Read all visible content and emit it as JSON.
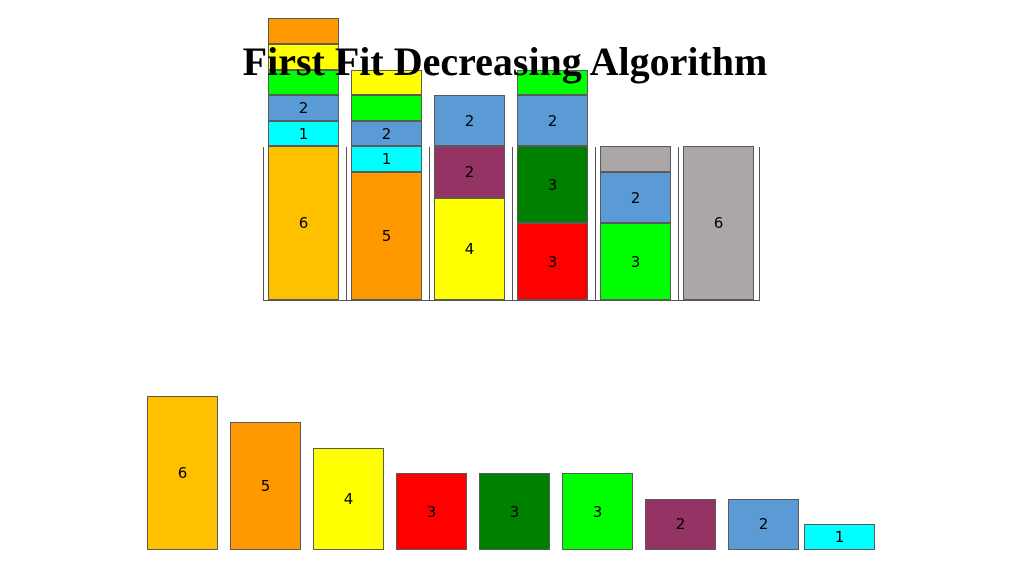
{
  "title": "First Fit Decreasing Algorithm",
  "colors": {
    "6": "#FFC000",
    "5": "#FF9900",
    "4": "#FFFF00",
    "3_red": "#FF0000",
    "3_dark_green": "#008000",
    "3_green": "#00FF00",
    "2_purple": "#953464",
    "2_blue": "#5B9BD5",
    "1": "#00FFFF",
    "gray": "#ABA7A7",
    "orange_top": "#FF9900"
  },
  "items": [
    {
      "label": "6",
      "size": 6,
      "color": "6"
    },
    {
      "label": "5",
      "size": 5,
      "color": "5"
    },
    {
      "label": "4",
      "size": 4,
      "color": "4"
    },
    {
      "label": "3",
      "size": 3,
      "color": "3_red"
    },
    {
      "label": "3",
      "size": 3,
      "color": "3_dark_green"
    },
    {
      "label": "3",
      "size": 3,
      "color": "3_green"
    },
    {
      "label": "2",
      "size": 2,
      "color": "2_purple"
    },
    {
      "label": "2",
      "size": 2,
      "color": "2_blue"
    },
    {
      "label": "1",
      "size": 1,
      "color": "1"
    }
  ],
  "bins": [
    {
      "blocks": [
        {
          "label": "6",
          "size": 6,
          "color": "6"
        },
        {
          "label": "1",
          "size": 1,
          "color": "1"
        },
        {
          "label": "2",
          "size": 1,
          "color": "2_blue"
        },
        {
          "label": "",
          "size": 1,
          "color": "3_green"
        },
        {
          "label": "",
          "size": 1,
          "color": "4"
        },
        {
          "label": "",
          "size": 1,
          "color": "orange_top"
        }
      ]
    },
    {
      "blocks": [
        {
          "label": "5",
          "size": 5,
          "color": "5"
        },
        {
          "label": "1",
          "size": 1,
          "color": "1"
        },
        {
          "label": "2",
          "size": 1,
          "color": "2_blue"
        },
        {
          "label": "",
          "size": 1,
          "color": "3_green"
        },
        {
          "label": "",
          "size": 1,
          "color": "4"
        }
      ]
    },
    {
      "blocks": [
        {
          "label": "4",
          "size": 4,
          "color": "4"
        },
        {
          "label": "2",
          "size": 2,
          "color": "2_purple"
        },
        {
          "label": "2",
          "size": 2,
          "color": "2_blue"
        }
      ]
    },
    {
      "blocks": [
        {
          "label": "3",
          "size": 3,
          "color": "3_red"
        },
        {
          "label": "3",
          "size": 3,
          "color": "3_dark_green"
        },
        {
          "label": "2",
          "size": 2,
          "color": "2_blue"
        },
        {
          "label": "",
          "size": 1,
          "color": "3_green"
        }
      ]
    },
    {
      "blocks": [
        {
          "label": "3",
          "size": 3,
          "color": "3_green"
        },
        {
          "label": "2",
          "size": 2,
          "color": "2_blue"
        },
        {
          "label": "",
          "size": 1,
          "color": "gray"
        }
      ]
    },
    {
      "blocks": [
        {
          "label": "6",
          "size": 6,
          "color": "gray"
        }
      ]
    }
  ]
}
